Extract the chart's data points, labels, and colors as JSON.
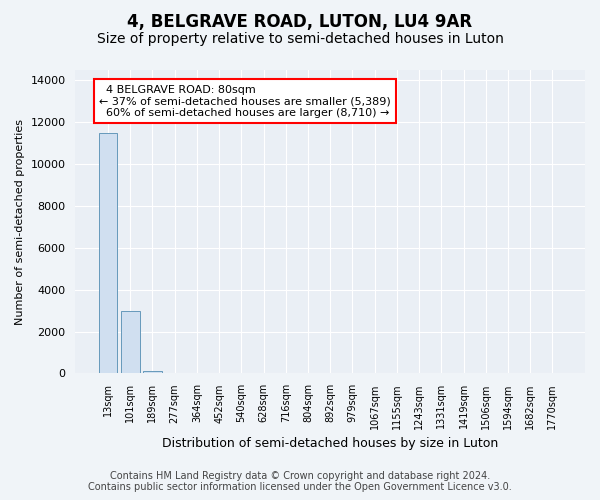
{
  "title": "4, BELGRAVE ROAD, LUTON, LU4 9AR",
  "subtitle": "Size of property relative to semi-detached houses in Luton",
  "xlabel": "Distribution of semi-detached houses by size in Luton",
  "ylabel": "Number of semi-detached properties",
  "categories": [
    "13sqm",
    "101sqm",
    "189sqm",
    "277sqm",
    "364sqm",
    "452sqm",
    "540sqm",
    "628sqm",
    "716sqm",
    "804sqm",
    "892sqm",
    "979sqm",
    "1067sqm",
    "1155sqm",
    "1243sqm",
    "1331sqm",
    "1419sqm",
    "1506sqm",
    "1594sqm",
    "1682sqm",
    "1770sqm"
  ],
  "values": [
    11500,
    3000,
    100,
    0,
    0,
    0,
    0,
    0,
    0,
    0,
    0,
    0,
    0,
    0,
    0,
    0,
    0,
    0,
    0,
    0,
    0
  ],
  "bar_color": "#d0dff0",
  "bar_edge_color": "#6699bb",
  "property_label": "4 BELGRAVE ROAD: 80sqm",
  "pct_smaller": 37,
  "count_smaller": 5389,
  "pct_larger": 60,
  "count_larger": 8710,
  "ylim": [
    0,
    14500
  ],
  "yticks": [
    0,
    2000,
    4000,
    6000,
    8000,
    10000,
    12000,
    14000
  ],
  "bg_color": "#f0f4f8",
  "plot_bg_color": "#eaeff5",
  "grid_color": "#ffffff",
  "footer_line1": "Contains HM Land Registry data © Crown copyright and database right 2024.",
  "footer_line2": "Contains public sector information licensed under the Open Government Licence v3.0.",
  "title_fontsize": 12,
  "subtitle_fontsize": 10,
  "annotation_fontsize": 8,
  "footer_fontsize": 7
}
